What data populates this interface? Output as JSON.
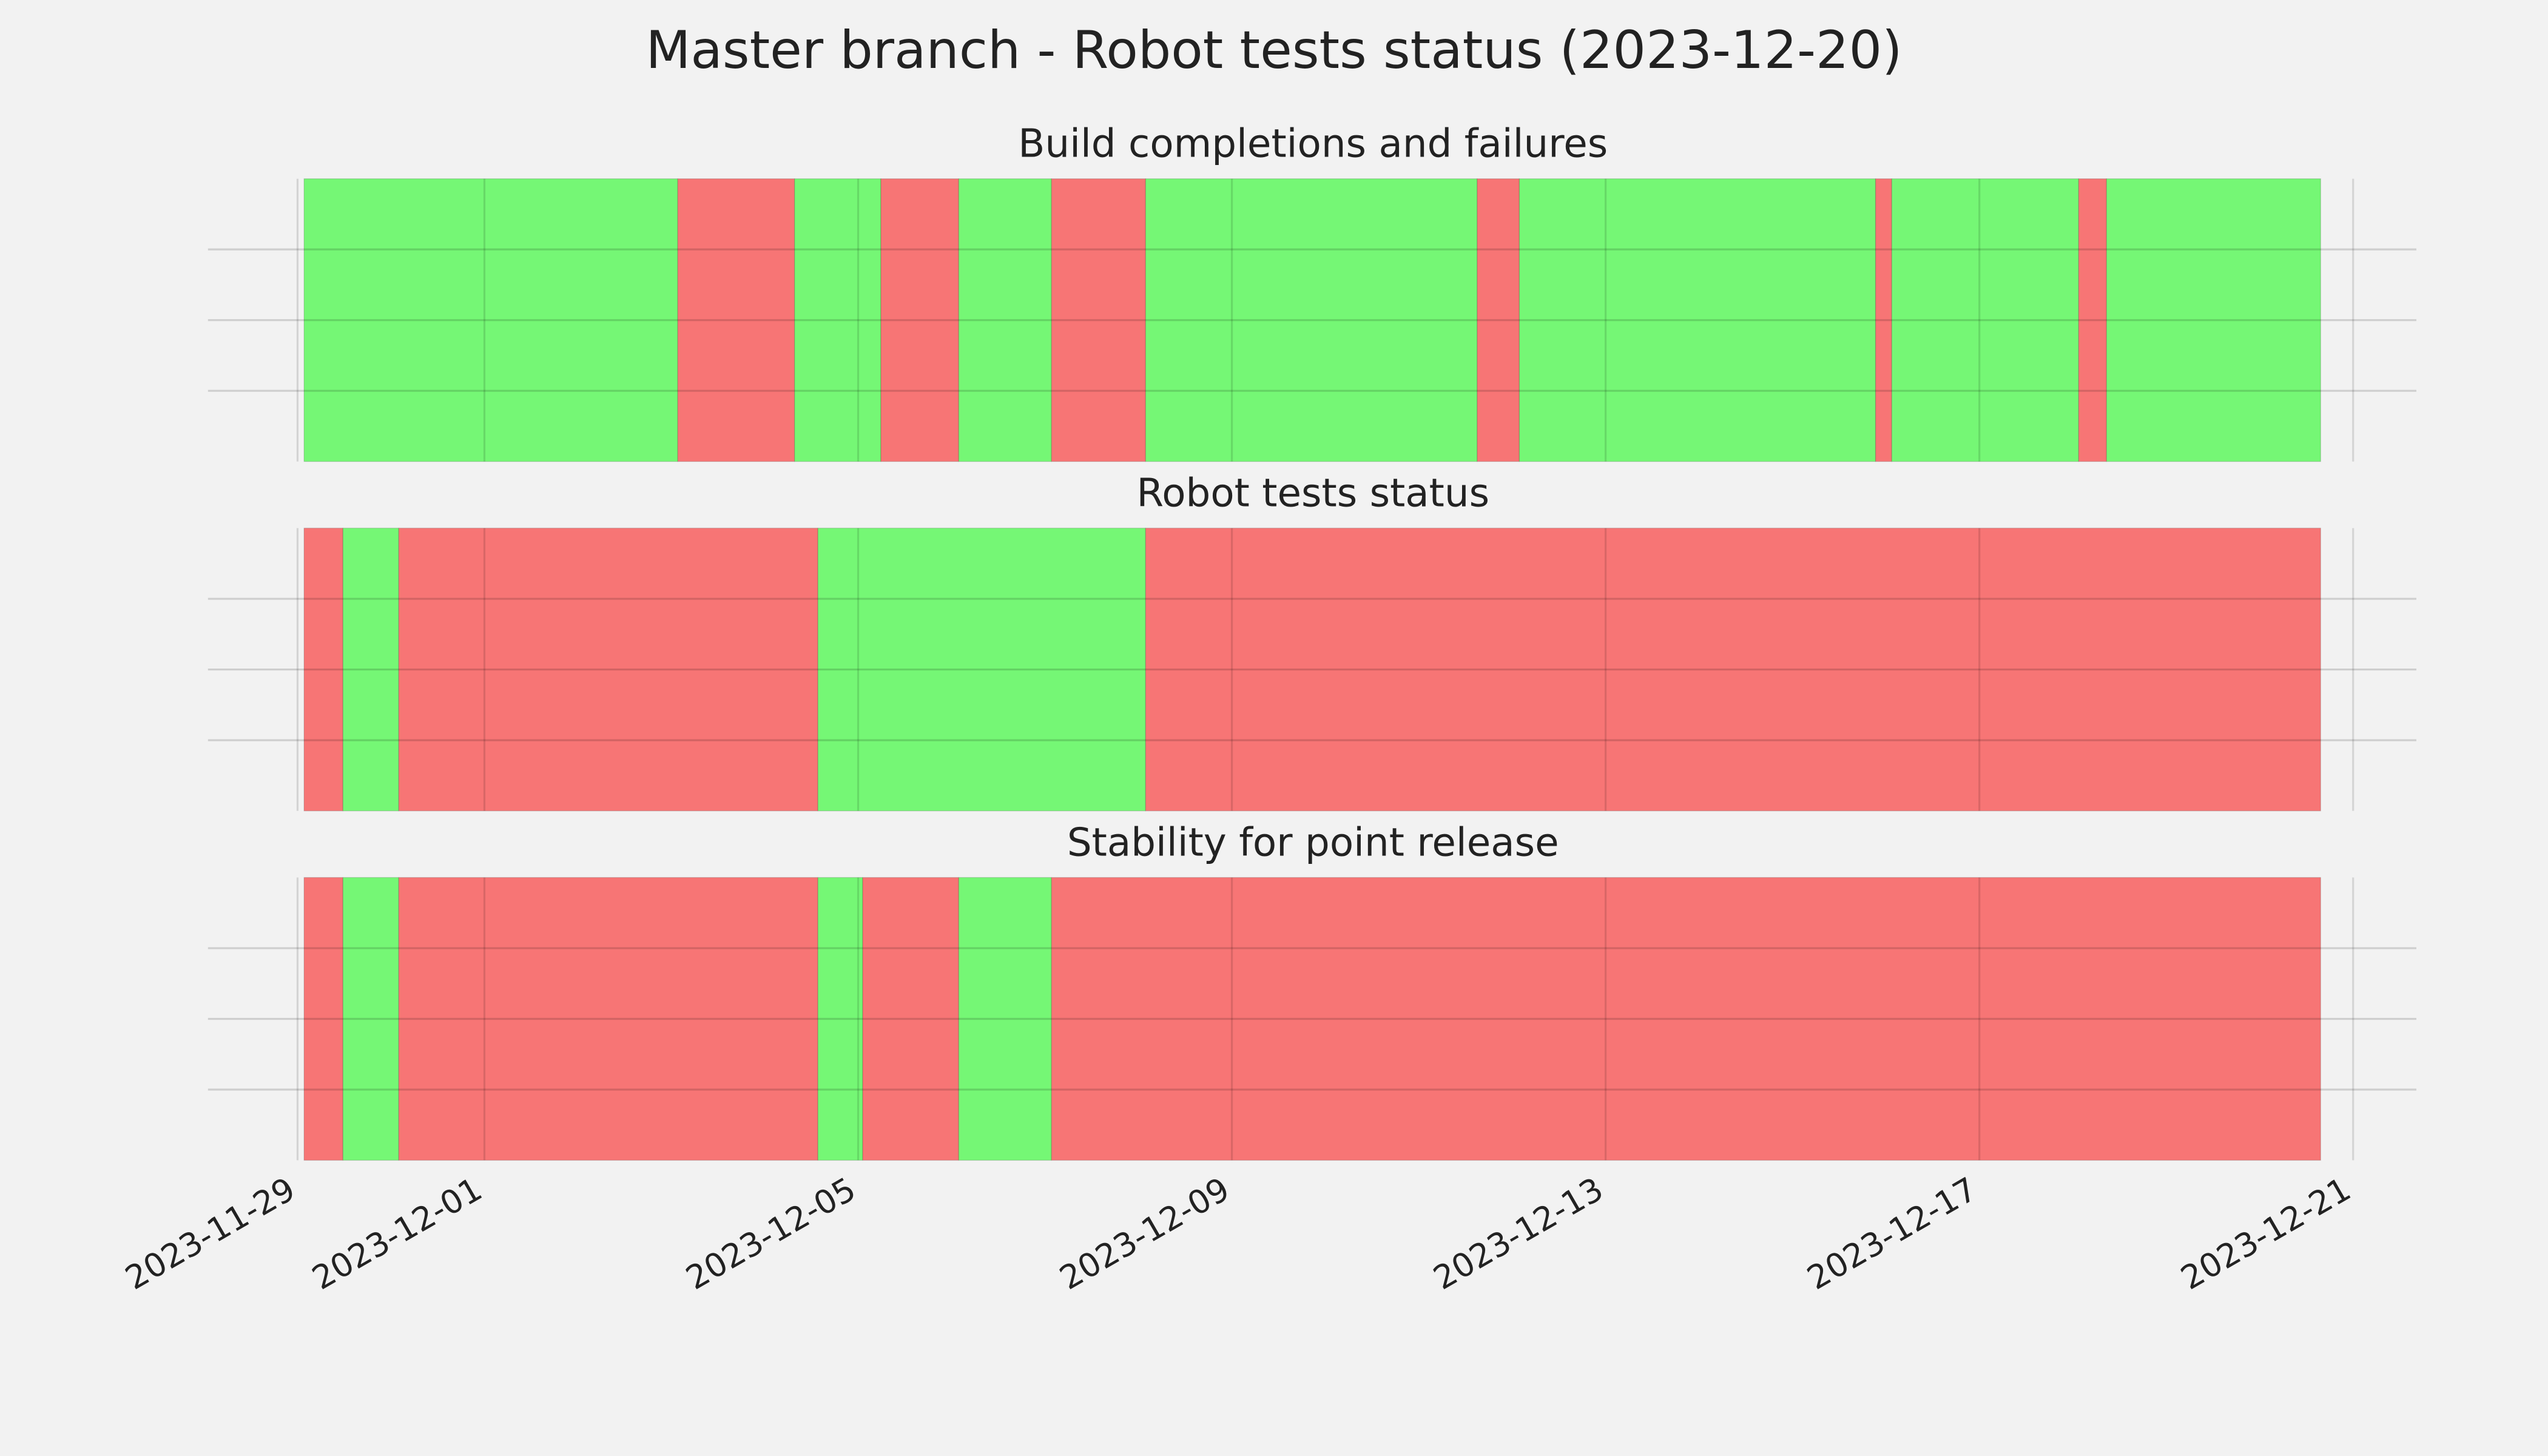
{
  "chart_data": {
    "type": "timeline",
    "title": "Master branch - Robot tests status (2023-12-20)",
    "xlim": [
      "2023-11-28 01:00",
      "2023-12-21 16:15"
    ],
    "xticks": [
      "2023-11-29",
      "2023-12-01",
      "2023-12-05",
      "2023-12-09",
      "2023-12-13",
      "2023-12-17",
      "2023-12-21"
    ],
    "ylim": [
      0,
      1
    ],
    "yticks": [
      0.25,
      0.5,
      0.75
    ],
    "grid": true,
    "panels": [
      {
        "title": "Build completions and failures",
        "segments": [
          {
            "start": "2023-11-29 01:40",
            "end": "2023-12-03 01:40",
            "color": "#75f775"
          },
          {
            "start": "2023-12-03 01:40",
            "end": "2023-12-04 07:40",
            "color": "#f77575"
          },
          {
            "start": "2023-12-04 07:40",
            "end": "2023-12-05 05:50",
            "color": "#75f775"
          },
          {
            "start": "2023-12-05 05:50",
            "end": "2023-12-06 01:50",
            "color": "#f77575"
          },
          {
            "start": "2023-12-06 01:50",
            "end": "2023-12-07 01:40",
            "color": "#75f775"
          },
          {
            "start": "2023-12-07 01:40",
            "end": "2023-12-08 01:50",
            "color": "#f77575"
          },
          {
            "start": "2023-12-08 01:50",
            "end": "2023-12-11 15:00",
            "color": "#75f775"
          },
          {
            "start": "2023-12-11 15:00",
            "end": "2023-12-12 01:50",
            "color": "#f77575"
          },
          {
            "start": "2023-12-12 01:50",
            "end": "2023-12-15 21:20",
            "color": "#75f775"
          },
          {
            "start": "2023-12-15 21:20",
            "end": "2023-12-16 01:30",
            "color": "#f77575"
          },
          {
            "start": "2023-12-16 01:30",
            "end": "2023-12-18 01:30",
            "color": "#75f775"
          },
          {
            "start": "2023-12-18 01:30",
            "end": "2023-12-18 08:40",
            "color": "#f77575"
          },
          {
            "start": "2023-12-18 08:40",
            "end": "2023-12-20 15:40",
            "color": "#75f775"
          }
        ]
      },
      {
        "title": "Robot tests status",
        "segments": [
          {
            "start": "2023-11-29 01:40",
            "end": "2023-11-29 11:40",
            "color": "#f77575"
          },
          {
            "start": "2023-11-29 11:40",
            "end": "2023-11-30 02:00",
            "color": "#75f775"
          },
          {
            "start": "2023-11-30 02:00",
            "end": "2023-12-04 13:40",
            "color": "#f77575"
          },
          {
            "start": "2023-12-04 13:40",
            "end": "2023-12-08 01:50",
            "color": "#75f775"
          },
          {
            "start": "2023-12-08 01:50",
            "end": "2023-12-20 15:40",
            "color": "#f77575"
          }
        ]
      },
      {
        "title": "Stability for point release",
        "segments": [
          {
            "start": "2023-11-29 01:40",
            "end": "2023-11-29 11:40",
            "color": "#f77575"
          },
          {
            "start": "2023-11-29 11:40",
            "end": "2023-11-30 02:00",
            "color": "#75f775"
          },
          {
            "start": "2023-11-30 02:00",
            "end": "2023-12-04 13:40",
            "color": "#f77575"
          },
          {
            "start": "2023-12-04 13:40",
            "end": "2023-12-05 01:10",
            "color": "#75f775"
          },
          {
            "start": "2023-12-05 01:10",
            "end": "2023-12-06 01:50",
            "color": "#f77575"
          },
          {
            "start": "2023-12-06 01:50",
            "end": "2023-12-07 01:40",
            "color": "#75f775"
          },
          {
            "start": "2023-12-07 01:40",
            "end": "2023-12-20 15:40",
            "color": "#f77575"
          }
        ]
      }
    ]
  }
}
